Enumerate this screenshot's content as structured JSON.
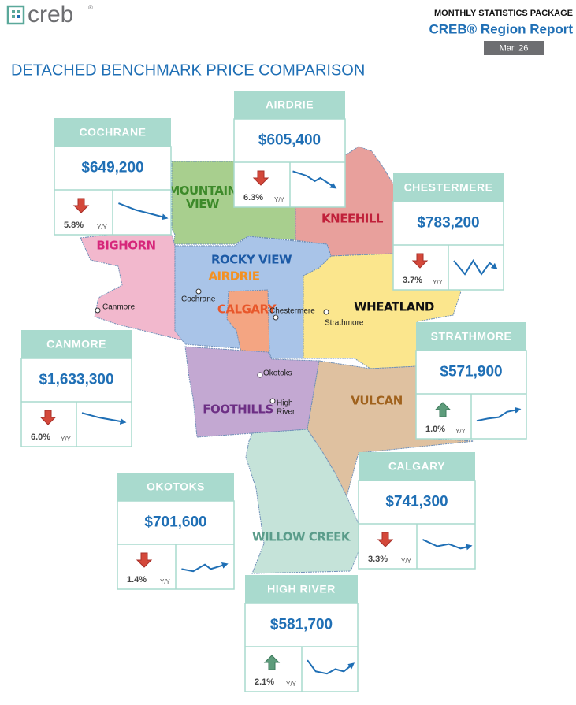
{
  "header": {
    "logo": "creb",
    "logo_mark": "®",
    "package": "MONTHLY STATISTICS PACKAGE",
    "report": "CREB® Region Report",
    "date": "Mar. 26"
  },
  "title": "DETACHED BENCHMARK PRICE COMPARISON",
  "yy_label": "Y/Y",
  "regions": [
    "MOUNTAIN VIEW",
    "KNEEHILL",
    "BIGHORN",
    "ROCKY VIEW",
    "AIRDRIE",
    "CALGARY",
    "WHEATLAND",
    "FOOTHILLS",
    "VULCAN",
    "WILLOW CREEK"
  ],
  "towns": [
    [
      "Canmore"
    ],
    [
      "Cochrane"
    ],
    [
      "Chestermere"
    ],
    [
      "Strathmore"
    ],
    [
      "Okotoks"
    ],
    [
      "High",
      "River"
    ]
  ],
  "cards": [
    {
      "name": "COCHRANE",
      "price": "$649,200",
      "change": "5.8%",
      "direction": "down"
    },
    {
      "name": "AIRDRIE",
      "price": "$605,400",
      "change": "6.3%",
      "direction": "down"
    },
    {
      "name": "CHESTERMERE",
      "price": "$783,200",
      "change": "3.7%",
      "direction": "down"
    },
    {
      "name": "CANMORE",
      "price": "$1,633,300",
      "change": "6.0%",
      "direction": "down"
    },
    {
      "name": "STRATHMORE",
      "price": "$571,900",
      "change": "1.0%",
      "direction": "up"
    },
    {
      "name": "OKOTOKS",
      "price": "$701,600",
      "change": "1.4%",
      "direction": "down"
    },
    {
      "name": "CALGARY",
      "price": "$741,300",
      "change": "3.3%",
      "direction": "down"
    },
    {
      "name": "HIGH RIVER",
      "price": "$581,700",
      "change": "2.1%",
      "direction": "up"
    }
  ]
}
